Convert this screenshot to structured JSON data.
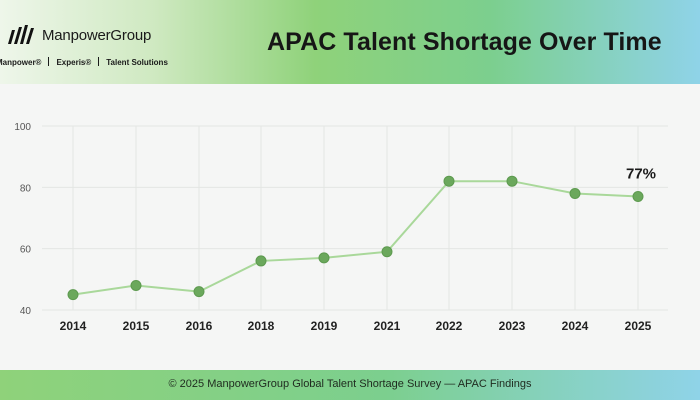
{
  "header": {
    "logo_text": "ManpowerGroup",
    "brands": [
      "Manpower®",
      "Experis®",
      "Talent Solutions"
    ],
    "title": "APAC Talent Shortage Over Time"
  },
  "colors": {
    "line": "#a9d89a",
    "marker": "#6ba85c",
    "grid": "#e3e6e3"
  },
  "chart_data": {
    "type": "line",
    "title": "APAC Talent Shortage Over Time",
    "categories": [
      "2014",
      "2015",
      "2016",
      "2018",
      "2019",
      "2021",
      "2022",
      "2023",
      "2024",
      "2025"
    ],
    "series": [
      {
        "values": [
          45,
          48,
          46,
          56,
          57,
          59,
          82,
          82,
          78,
          77
        ]
      }
    ],
    "y_ticks": [
      "40",
      "60",
      "80",
      "100"
    ],
    "ylim": [
      40,
      100
    ],
    "grid": true,
    "annotation": {
      "category": "2025",
      "text": "77%"
    }
  },
  "footer": {
    "text": "© 2025 ManpowerGroup Global Talent Shortage Survey — APAC Findings"
  }
}
